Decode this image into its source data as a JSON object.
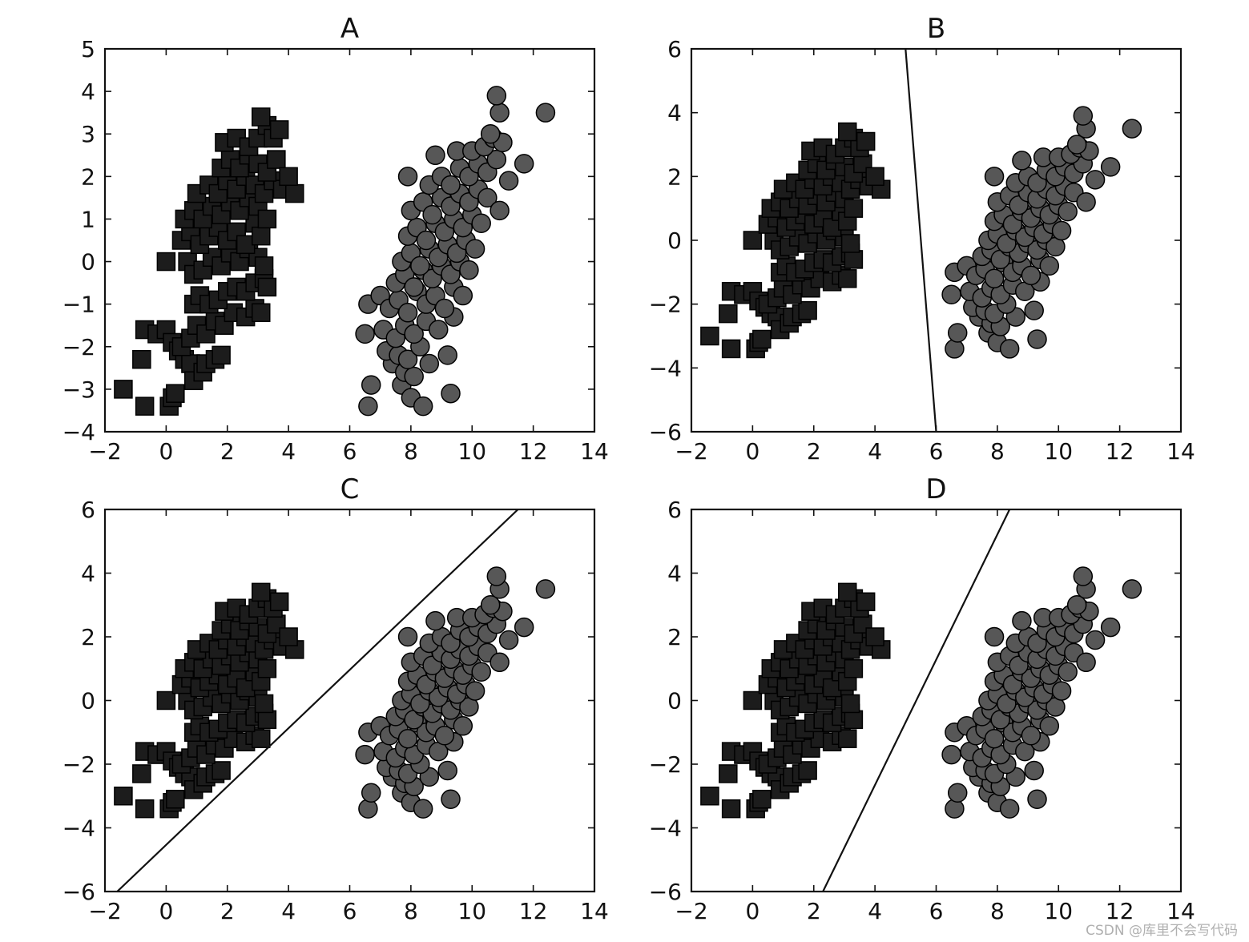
{
  "watermark": "CSDN @库里不会写代码",
  "colors": {
    "square": "#1c1c1c",
    "circle": "#575757",
    "line": "#111111"
  },
  "chart_data": [
    {
      "type": "scatter",
      "title": "A",
      "xlim": [
        -2,
        14
      ],
      "ylim": [
        -4,
        5
      ],
      "xticks": [
        -2,
        0,
        2,
        4,
        6,
        8,
        10,
        12,
        14
      ],
      "yticks": [
        -4,
        -3,
        -2,
        -1,
        0,
        1,
        2,
        3,
        4,
        5
      ],
      "xtick_labels": [
        "−2",
        "0",
        "2",
        "4",
        "6",
        "8",
        "10",
        "12",
        "14"
      ],
      "ytick_labels": [
        "−4",
        "−3",
        "−2",
        "−1",
        "0",
        "1",
        "2",
        "3",
        "4",
        "5"
      ],
      "line": null
    },
    {
      "type": "scatter",
      "title": "B",
      "xlim": [
        -2,
        14
      ],
      "ylim": [
        -6,
        6
      ],
      "xticks": [
        -2,
        0,
        2,
        4,
        6,
        8,
        10,
        12,
        14
      ],
      "yticks": [
        -6,
        -4,
        -2,
        0,
        2,
        4,
        6
      ],
      "xtick_labels": [
        "−2",
        "0",
        "2",
        "4",
        "6",
        "8",
        "10",
        "12",
        "14"
      ],
      "ytick_labels": [
        "−6",
        "−4",
        "−2",
        "0",
        "2",
        "4",
        "6"
      ],
      "line": [
        [
          5.0,
          6
        ],
        [
          6.0,
          -6
        ]
      ]
    },
    {
      "type": "scatter",
      "title": "C",
      "xlim": [
        -2,
        14
      ],
      "ylim": [
        -6,
        6
      ],
      "xticks": [
        -2,
        0,
        2,
        4,
        6,
        8,
        10,
        12,
        14
      ],
      "yticks": [
        -6,
        -4,
        -2,
        0,
        2,
        4,
        6
      ],
      "xtick_labels": [
        "−2",
        "0",
        "2",
        "4",
        "6",
        "8",
        "10",
        "12",
        "14"
      ],
      "ytick_labels": [
        "−6",
        "−4",
        "−2",
        "0",
        "2",
        "4",
        "6"
      ],
      "line": [
        [
          -1.6,
          -6
        ],
        [
          11.5,
          6
        ]
      ]
    },
    {
      "type": "scatter",
      "title": "D",
      "xlim": [
        -2,
        14
      ],
      "ylim": [
        -6,
        6
      ],
      "xticks": [
        -2,
        0,
        2,
        4,
        6,
        8,
        10,
        12,
        14
      ],
      "yticks": [
        -6,
        -4,
        -2,
        0,
        2,
        4,
        6
      ],
      "xtick_labels": [
        "−2",
        "0",
        "2",
        "4",
        "6",
        "8",
        "10",
        "12",
        "14"
      ],
      "ytick_labels": [
        "−6",
        "−4",
        "−2",
        "0",
        "2",
        "4",
        "6"
      ],
      "line": [
        [
          2.3,
          -6
        ],
        [
          8.4,
          6
        ]
      ]
    }
  ],
  "series": [
    {
      "marker": "square",
      "points": [
        [
          -1.4,
          -3.0
        ],
        [
          -0.7,
          -3.4
        ],
        [
          0.1,
          -3.4
        ],
        [
          0.2,
          -3.2
        ],
        [
          0.3,
          -3.1
        ],
        [
          -0.8,
          -2.3
        ],
        [
          -0.7,
          -1.6
        ],
        [
          -0.3,
          -1.7
        ],
        [
          0.0,
          -1.6
        ],
        [
          0.2,
          -1.9
        ],
        [
          0.4,
          -2.1
        ],
        [
          0.6,
          -2.3
        ],
        [
          0.8,
          -2.4
        ],
        [
          0.9,
          -2.8
        ],
        [
          1.2,
          -2.6
        ],
        [
          1.3,
          -2.4
        ],
        [
          1.6,
          -2.3
        ],
        [
          1.8,
          -2.2
        ],
        [
          0.5,
          -2.0
        ],
        [
          0.8,
          -1.8
        ],
        [
          1.0,
          -1.5
        ],
        [
          1.3,
          -1.7
        ],
        [
          1.6,
          -1.4
        ],
        [
          1.9,
          -1.5
        ],
        [
          2.2,
          -1.2
        ],
        [
          2.6,
          -1.3
        ],
        [
          2.9,
          -1.1
        ],
        [
          3.1,
          -1.2
        ],
        [
          0.9,
          -1.0
        ],
        [
          1.1,
          -0.8
        ],
        [
          1.4,
          -1.0
        ],
        [
          1.7,
          -0.9
        ],
        [
          2.0,
          -0.7
        ],
        [
          2.3,
          -0.6
        ],
        [
          2.6,
          -0.7
        ],
        [
          2.9,
          -0.5
        ],
        [
          3.2,
          -0.4
        ],
        [
          3.3,
          -0.6
        ],
        [
          0.0,
          0.0
        ],
        [
          0.7,
          0.0
        ],
        [
          0.9,
          -0.3
        ],
        [
          1.2,
          -0.2
        ],
        [
          1.5,
          0.1
        ],
        [
          1.8,
          -0.1
        ],
        [
          2.1,
          0.2
        ],
        [
          2.4,
          0.0
        ],
        [
          2.7,
          0.3
        ],
        [
          3.0,
          0.1
        ],
        [
          3.2,
          -0.1
        ],
        [
          0.5,
          0.5
        ],
        [
          0.8,
          0.7
        ],
        [
          1.1,
          0.4
        ],
        [
          1.4,
          0.6
        ],
        [
          1.7,
          0.8
        ],
        [
          2.0,
          0.5
        ],
        [
          2.3,
          0.7
        ],
        [
          2.6,
          0.4
        ],
        [
          2.9,
          0.9
        ],
        [
          3.1,
          0.6
        ],
        [
          0.6,
          1.0
        ],
        [
          0.9,
          1.2
        ],
        [
          1.2,
          1.0
        ],
        [
          1.5,
          1.3
        ],
        [
          1.8,
          1.1
        ],
        [
          2.1,
          1.4
        ],
        [
          2.4,
          1.2
        ],
        [
          2.7,
          1.5
        ],
        [
          3.0,
          1.3
        ],
        [
          3.3,
          1.0
        ],
        [
          1.0,
          1.6
        ],
        [
          1.4,
          1.8
        ],
        [
          1.7,
          1.6
        ],
        [
          2.0,
          1.9
        ],
        [
          2.3,
          1.7
        ],
        [
          2.6,
          2.0
        ],
        [
          2.9,
          1.8
        ],
        [
          3.2,
          1.6
        ],
        [
          3.5,
          1.9
        ],
        [
          3.8,
          1.7
        ],
        [
          4.2,
          1.6
        ],
        [
          1.8,
          2.2
        ],
        [
          2.1,
          2.4
        ],
        [
          2.4,
          2.2
        ],
        [
          2.7,
          2.5
        ],
        [
          3.0,
          2.3
        ],
        [
          3.3,
          2.1
        ],
        [
          3.6,
          2.4
        ],
        [
          4.0,
          2.0
        ],
        [
          1.9,
          2.8
        ],
        [
          2.3,
          2.9
        ],
        [
          2.7,
          2.7
        ],
        [
          3.0,
          2.9
        ],
        [
          3.3,
          3.2
        ],
        [
          3.5,
          2.9
        ],
        [
          3.7,
          3.1
        ],
        [
          3.1,
          3.4
        ]
      ]
    },
    {
      "marker": "circle",
      "points": [
        [
          6.6,
          -3.4
        ],
        [
          6.7,
          -2.9
        ],
        [
          7.7,
          -2.9
        ],
        [
          8.0,
          -3.2
        ],
        [
          8.4,
          -3.4
        ],
        [
          9.3,
          -3.1
        ],
        [
          7.4,
          -2.4
        ],
        [
          7.8,
          -2.6
        ],
        [
          8.1,
          -2.7
        ],
        [
          8.6,
          -2.4
        ],
        [
          7.2,
          -2.1
        ],
        [
          7.6,
          -2.2
        ],
        [
          7.9,
          -2.3
        ],
        [
          8.3,
          -2.0
        ],
        [
          9.2,
          -2.2
        ],
        [
          6.5,
          -1.7
        ],
        [
          7.1,
          -1.6
        ],
        [
          7.5,
          -1.8
        ],
        [
          7.8,
          -1.5
        ],
        [
          8.1,
          -1.7
        ],
        [
          8.5,
          -1.4
        ],
        [
          8.9,
          -1.6
        ],
        [
          9.4,
          -1.3
        ],
        [
          6.6,
          -1.0
        ],
        [
          7.0,
          -0.8
        ],
        [
          7.3,
          -1.1
        ],
        [
          7.6,
          -0.9
        ],
        [
          7.9,
          -1.2
        ],
        [
          8.2,
          -0.7
        ],
        [
          8.5,
          -1.0
        ],
        [
          8.8,
          -0.8
        ],
        [
          9.1,
          -1.1
        ],
        [
          9.4,
          -0.6
        ],
        [
          9.7,
          -0.8
        ],
        [
          7.5,
          -0.5
        ],
        [
          7.8,
          -0.3
        ],
        [
          8.1,
          -0.6
        ],
        [
          8.4,
          -0.2
        ],
        [
          8.7,
          -0.4
        ],
        [
          9.0,
          -0.1
        ],
        [
          9.3,
          -0.3
        ],
        [
          9.6,
          0.0
        ],
        [
          9.9,
          -0.2
        ],
        [
          7.7,
          0.0
        ],
        [
          8.0,
          0.2
        ],
        [
          8.3,
          -0.1
        ],
        [
          8.6,
          0.3
        ],
        [
          8.9,
          0.1
        ],
        [
          9.2,
          0.4
        ],
        [
          9.5,
          0.2
        ],
        [
          9.8,
          0.5
        ],
        [
          10.1,
          0.3
        ],
        [
          7.9,
          0.6
        ],
        [
          8.2,
          0.8
        ],
        [
          8.5,
          0.5
        ],
        [
          8.8,
          0.9
        ],
        [
          9.1,
          0.7
        ],
        [
          9.4,
          1.0
        ],
        [
          9.7,
          0.8
        ],
        [
          10.0,
          1.1
        ],
        [
          10.3,
          0.9
        ],
        [
          8.0,
          1.2
        ],
        [
          8.4,
          1.4
        ],
        [
          8.7,
          1.1
        ],
        [
          9.0,
          1.5
        ],
        [
          9.3,
          1.3
        ],
        [
          9.6,
          1.6
        ],
        [
          9.9,
          1.4
        ],
        [
          10.2,
          1.7
        ],
        [
          10.5,
          1.5
        ],
        [
          10.9,
          1.2
        ],
        [
          8.6,
          1.8
        ],
        [
          9.0,
          2.0
        ],
        [
          9.3,
          1.8
        ],
        [
          9.6,
          2.2
        ],
        [
          9.9,
          2.0
        ],
        [
          10.2,
          2.3
        ],
        [
          10.5,
          2.1
        ],
        [
          10.8,
          2.4
        ],
        [
          11.2,
          1.9
        ],
        [
          11.7,
          2.3
        ],
        [
          7.9,
          2.0
        ],
        [
          8.8,
          2.5
        ],
        [
          9.5,
          2.6
        ],
        [
          10.0,
          2.6
        ],
        [
          10.4,
          2.7
        ],
        [
          10.7,
          2.9
        ],
        [
          11.0,
          2.8
        ],
        [
          10.6,
          3.0
        ],
        [
          10.9,
          3.5
        ],
        [
          10.8,
          3.9
        ],
        [
          12.4,
          3.5
        ]
      ]
    }
  ]
}
